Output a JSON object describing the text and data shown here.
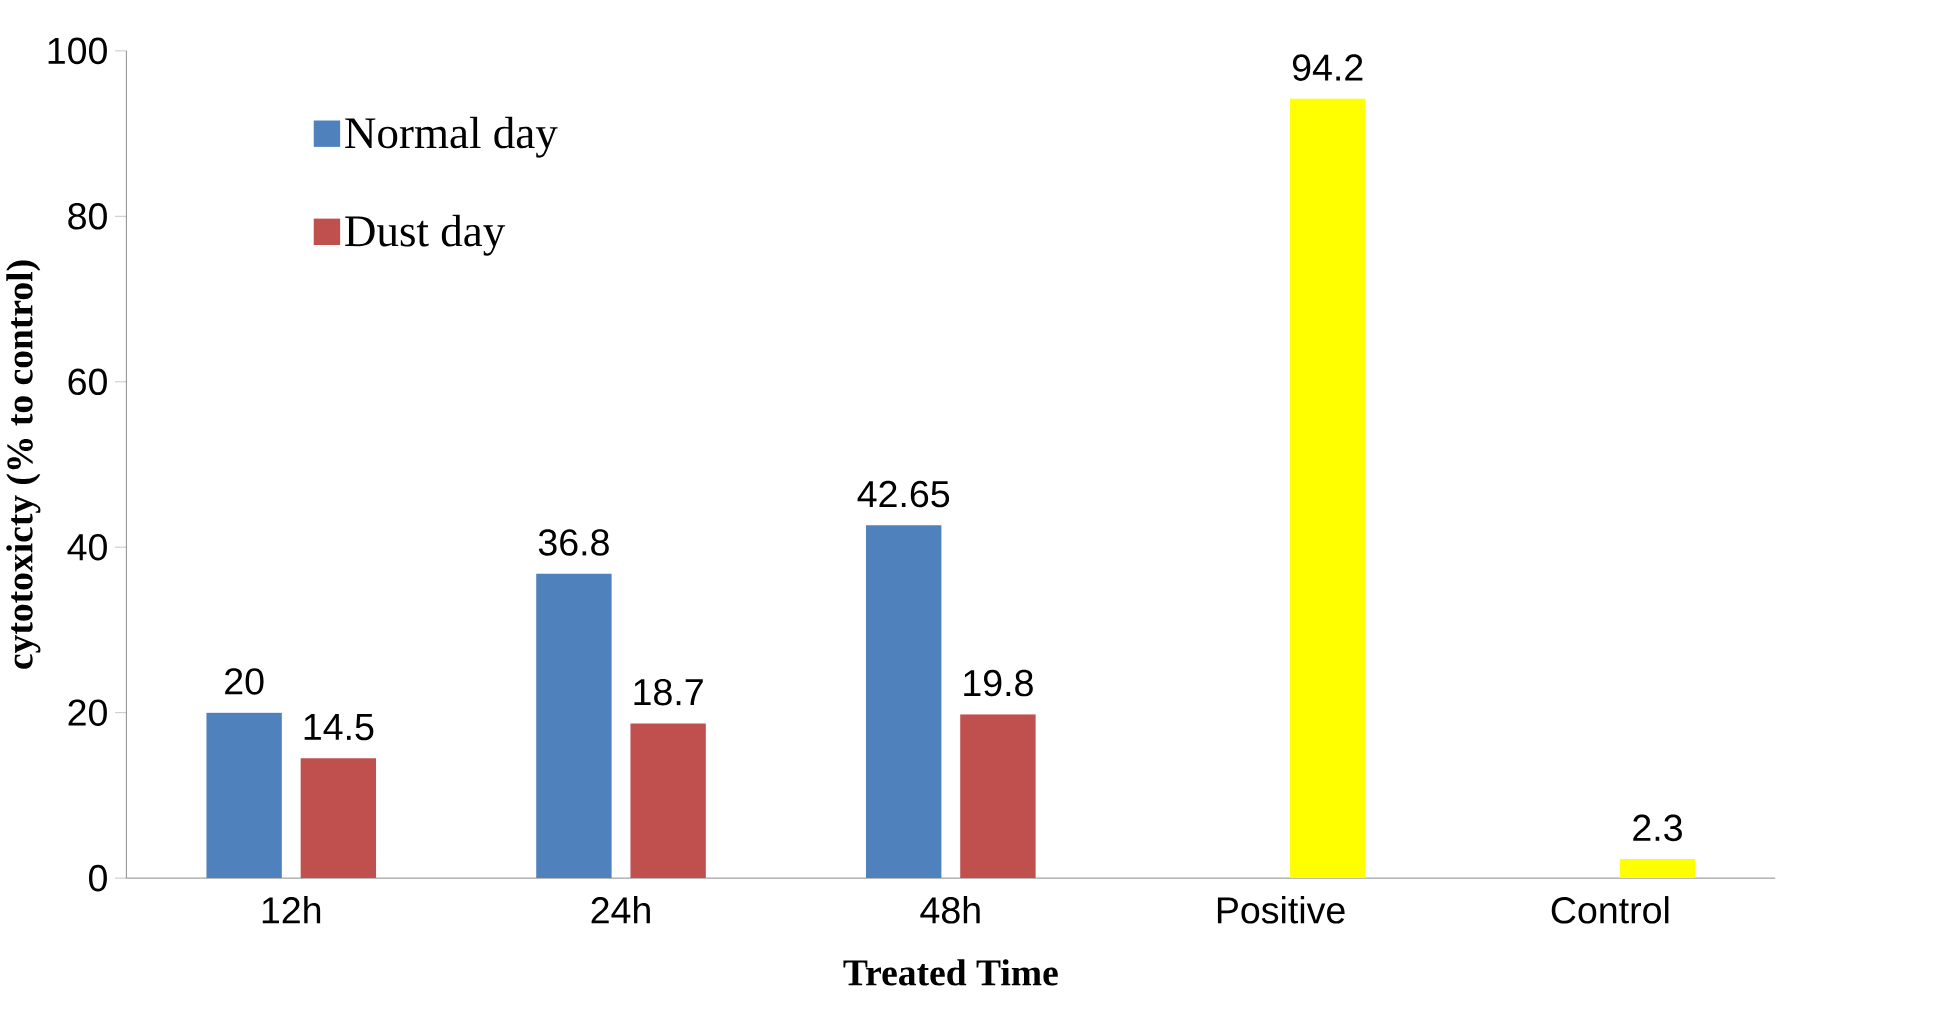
{
  "chart_data": {
    "type": "bar",
    "categories": [
      "12h",
      "24h",
      "48h",
      "Positive",
      "Control"
    ],
    "xlabel": "Treated Time",
    "ylabel": "cytotoxicty  (% to control)",
    "ylim": [
      0,
      100
    ],
    "yticks": [
      0,
      20,
      40,
      60,
      80,
      100
    ],
    "legend": "top left",
    "data_labels": true,
    "series": [
      {
        "name": "Normal day",
        "color": "#4f81bd",
        "values": [
          20,
          36.8,
          42.65,
          null,
          null
        ]
      },
      {
        "name": "Dust day",
        "color": "#c0504d",
        "colors": [
          "#c0504d",
          "#c0504d",
          "#c0504d",
          "#ffff00",
          "#ffff00"
        ],
        "values": [
          14.5,
          18.7,
          19.8,
          94.2,
          2.3
        ]
      }
    ]
  }
}
